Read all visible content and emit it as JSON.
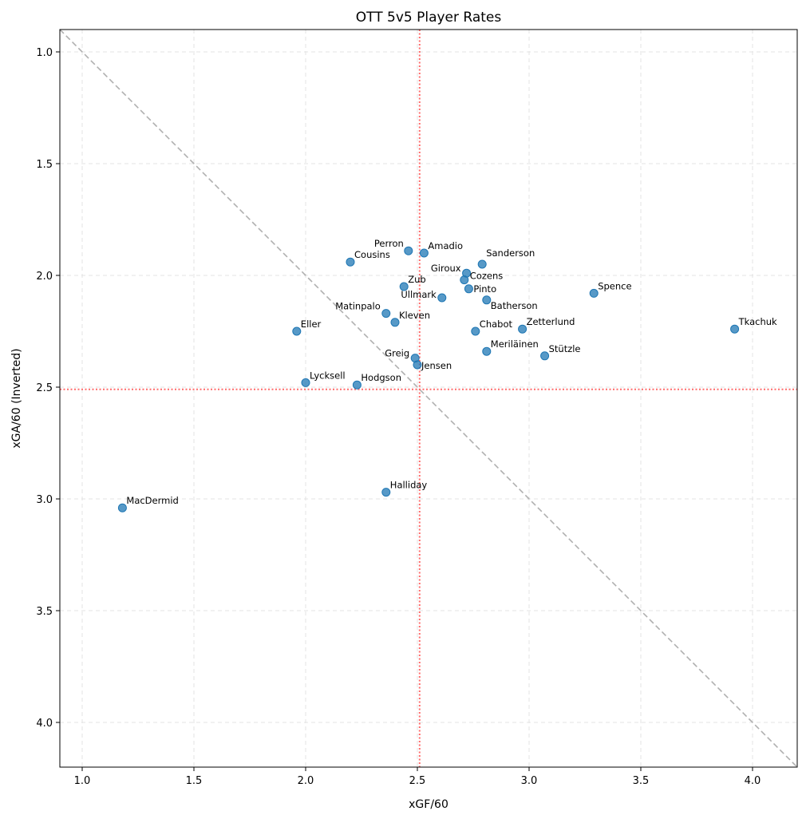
{
  "chart_data": {
    "type": "scatter",
    "title": "OTT 5v5 Player Rates",
    "xlabel": "xGF/60",
    "ylabel": "xGA/60 (Inverted)",
    "xlim": [
      0.9,
      4.2
    ],
    "ylim": [
      0.9,
      4.2
    ],
    "y_inverted": true,
    "grid": true,
    "xticks": [
      "1.0",
      "1.5",
      "2.0",
      "2.5",
      "3.0",
      "3.5",
      "4.0"
    ],
    "yticks": [
      "1.0",
      "1.5",
      "2.0",
      "2.5",
      "3.0",
      "3.5",
      "4.0"
    ],
    "reference_lines": {
      "x_mean": 2.51,
      "y_mean": 2.51,
      "diagonal": "y = x"
    },
    "colors": {
      "points": "#1f77b4",
      "mean_lines": "#ff6b6b",
      "diagonal": "#b0b0b0"
    },
    "points": [
      {
        "label": "Perron",
        "x": 2.46,
        "y": 1.89
      },
      {
        "label": "Amadio",
        "x": 2.53,
        "y": 1.9
      },
      {
        "label": "Cousins",
        "x": 2.2,
        "y": 1.94
      },
      {
        "label": "Sanderson",
        "x": 2.79,
        "y": 1.95
      },
      {
        "label": "Giroux",
        "x": 2.72,
        "y": 1.99
      },
      {
        "label": "Cozens",
        "x": 2.71,
        "y": 2.02
      },
      {
        "label": "Pinto",
        "x": 2.73,
        "y": 2.06
      },
      {
        "label": "Zub",
        "x": 2.44,
        "y": 2.05
      },
      {
        "label": "Ullmark",
        "x": 2.61,
        "y": 2.1
      },
      {
        "label": "Batherson",
        "x": 2.81,
        "y": 2.11
      },
      {
        "label": "Spence",
        "x": 3.29,
        "y": 2.08
      },
      {
        "label": "Matinpalo",
        "x": 2.36,
        "y": 2.17
      },
      {
        "label": "Kleven",
        "x": 2.4,
        "y": 2.21
      },
      {
        "label": "Eller",
        "x": 1.96,
        "y": 2.25
      },
      {
        "label": "Chabot",
        "x": 2.76,
        "y": 2.25
      },
      {
        "label": "Zetterlund",
        "x": 2.97,
        "y": 2.24
      },
      {
        "label": "Tkachuk",
        "x": 3.92,
        "y": 2.24
      },
      {
        "label": "Meriläinen",
        "x": 2.81,
        "y": 2.34
      },
      {
        "label": "Stützle",
        "x": 3.07,
        "y": 2.36
      },
      {
        "label": "Greig",
        "x": 2.49,
        "y": 2.37
      },
      {
        "label": "Jensen",
        "x": 2.5,
        "y": 2.4
      },
      {
        "label": "Lycksell",
        "x": 2.0,
        "y": 2.48
      },
      {
        "label": "Hodgson",
        "x": 2.23,
        "y": 2.49
      },
      {
        "label": "Halliday",
        "x": 2.36,
        "y": 2.97
      },
      {
        "label": "MacDermid",
        "x": 1.18,
        "y": 3.04
      }
    ]
  }
}
